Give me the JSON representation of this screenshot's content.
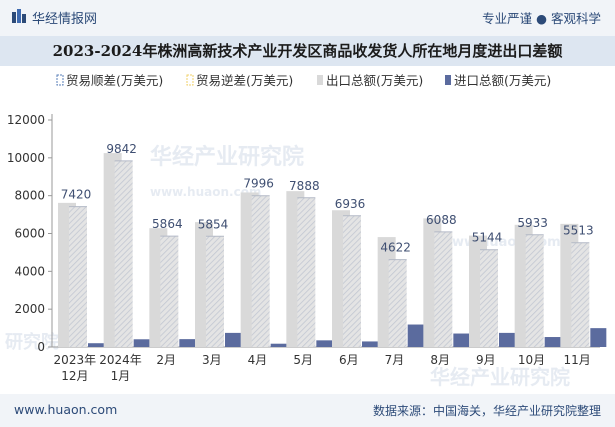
{
  "header": {
    "brand": "华经情报网",
    "tagline": "专业严谨 ● 客观科学"
  },
  "footer": {
    "site": "www.huaon.com",
    "source": "数据来源：中国海关，华经产业研究院整理"
  },
  "watermarks": [
    "华经产业研究院",
    "www.huaon.com",
    "研究院",
    "华经产业研究院",
    "www.huaon.com"
  ],
  "colors": {
    "export": "#d9d9d9",
    "import": "#5b6b9e",
    "trade_surplus": "#5a7fb8",
    "trade_deficit": "#f1d26a",
    "axis_text": "#333333",
    "label_text": "#3f4f72"
  },
  "chart_data": {
    "type": "bar",
    "title": "2023-2024年株洲高新技术产业开发区商品收发货人所在地月度进出口差额",
    "categories": [
      [
        "2023年",
        "12月"
      ],
      [
        "2024年",
        "1月"
      ],
      [
        "2月"
      ],
      [
        "3月"
      ],
      [
        "4月"
      ],
      [
        "5月"
      ],
      [
        "6月"
      ],
      [
        "7月"
      ],
      [
        "8月"
      ],
      [
        "9月"
      ],
      [
        "10月"
      ],
      [
        "11月"
      ]
    ],
    "ylim": [
      0,
      12000
    ],
    "yticks": [
      "0",
      "2000",
      "4000",
      "6000",
      "8000",
      "10000",
      "12000"
    ],
    "legend_position": "top",
    "series": [
      {
        "name": "贸易顺差(万美元)",
        "kind": "hatch",
        "values": [
          7420,
          9842,
          5864,
          5854,
          7996,
          7888,
          6936,
          4622,
          6088,
          5144,
          5933,
          5513
        ]
      },
      {
        "name": "贸易逆差(万美元)",
        "kind": "hatch-yellow",
        "values": [
          0,
          0,
          0,
          0,
          0,
          0,
          0,
          0,
          0,
          0,
          0,
          0
        ]
      },
      {
        "name": "出口总额(万美元)",
        "kind": "solid",
        "values": [
          7620,
          10250,
          6280,
          6600,
          8170,
          8240,
          7230,
          5810,
          6800,
          5890,
          6460,
          6510
        ]
      },
      {
        "name": "进口总额(万美元)",
        "kind": "solid",
        "values": [
          200,
          408,
          416,
          746,
          174,
          352,
          294,
          1188,
          712,
          746,
          527,
          997
        ]
      }
    ],
    "labels": [
      "7420",
      "9842",
      "5864",
      "5854",
      "7996",
      "7888",
      "6936",
      "4622",
      "6088",
      "5144",
      "5933",
      "5513"
    ]
  }
}
